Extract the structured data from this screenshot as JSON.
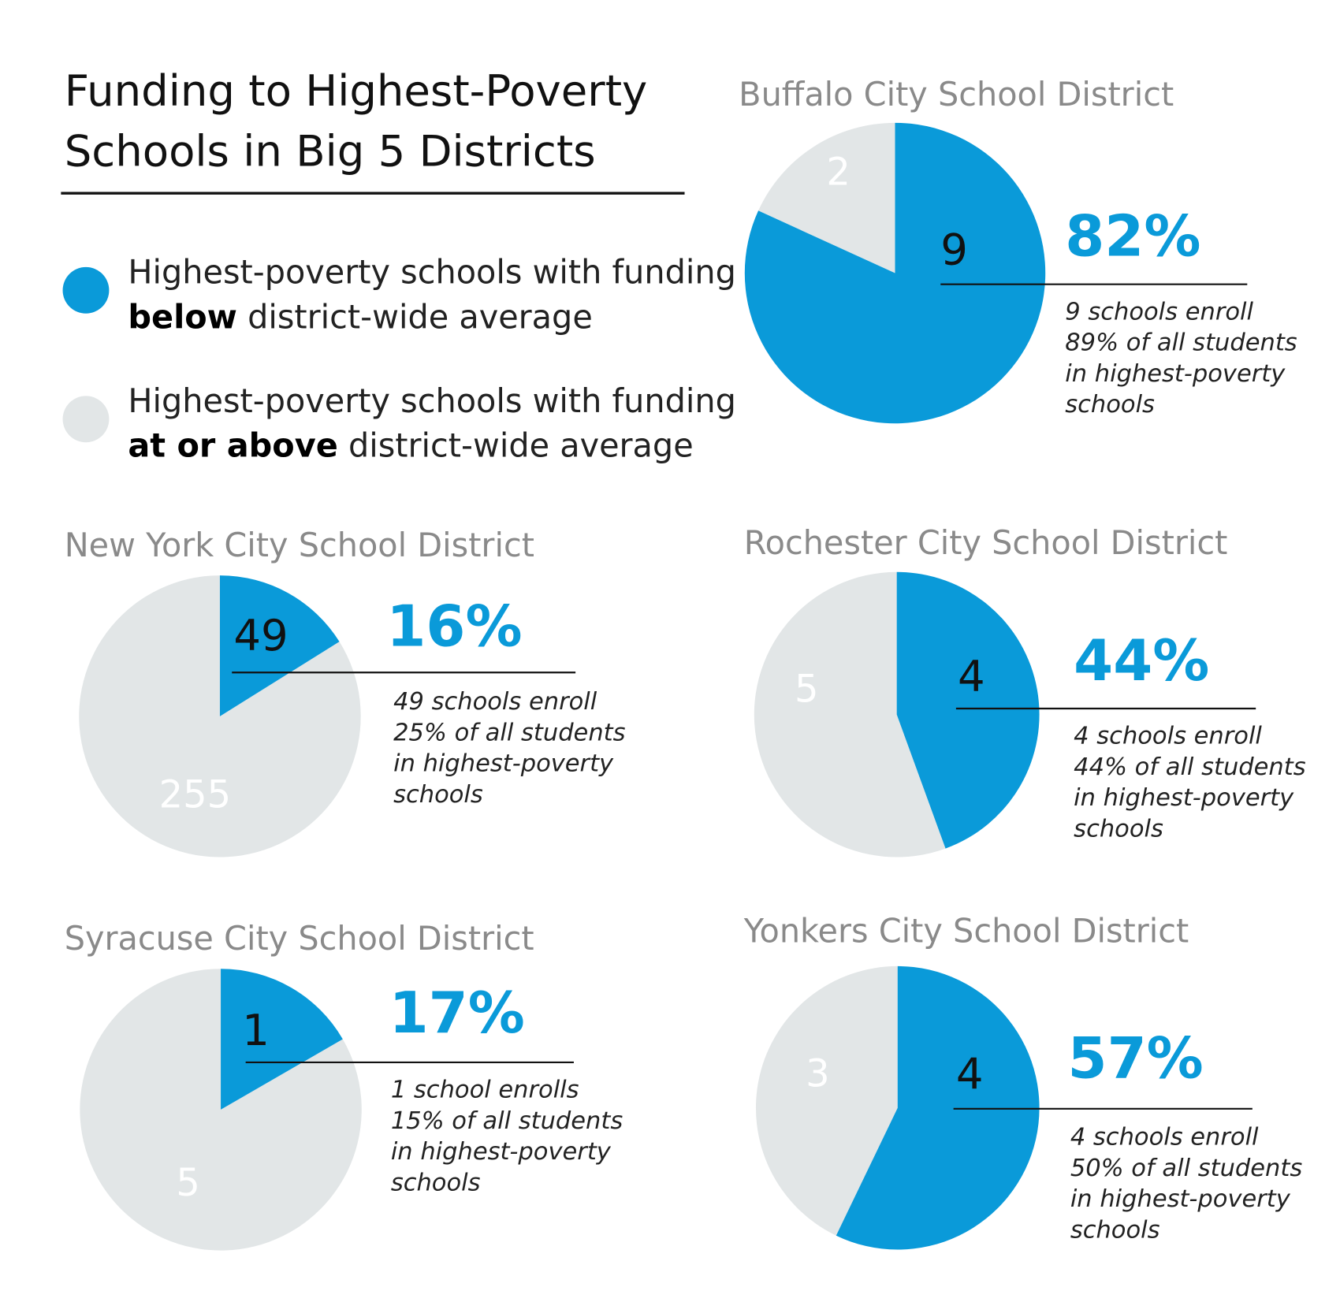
{
  "colors": {
    "below": "#0a9ad9",
    "at_or_above": "#e2e6e7"
  },
  "chart_data": {
    "type": "pie",
    "title": [
      "Funding to Highest-Poverty",
      "Schools in Big 5 Districts"
    ],
    "legend": [
      {
        "key": "below",
        "text": "Highest-poverty schools with funding",
        "bold": "below",
        "rest": " district-wide average"
      },
      {
        "key": "at_or_above",
        "text": "Highest-poverty schools with funding",
        "bold": "at or above",
        "rest": " district-wide average"
      }
    ],
    "districts": [
      {
        "name": "Buffalo City School District",
        "below": 9,
        "at_or_above": 2,
        "percent": "82%",
        "note": [
          "9 schools enroll",
          "89% of all students",
          "in highest-poverty",
          "schools"
        ]
      },
      {
        "name": "New York City School District",
        "below": 49,
        "at_or_above": 255,
        "percent": "16%",
        "note": [
          "49 schools enroll",
          "25% of all students",
          "in highest-poverty",
          "schools"
        ]
      },
      {
        "name": "Rochester City School District",
        "below": 4,
        "at_or_above": 5,
        "percent": "44%",
        "note": [
          "4 schools enroll",
          "44% of all students",
          "in highest-poverty",
          "schools"
        ]
      },
      {
        "name": "Syracuse City School District",
        "below": 1,
        "at_or_above": 5,
        "percent": "17%",
        "note": [
          "1 school enrolls",
          "15% of all students",
          "in highest-poverty",
          "schools"
        ]
      },
      {
        "name": "Yonkers City School District",
        "below": 4,
        "at_or_above": 3,
        "percent": "57%",
        "note": [
          "4 schools enroll",
          "50% of all students",
          "in highest-poverty",
          "schools"
        ]
      }
    ]
  }
}
